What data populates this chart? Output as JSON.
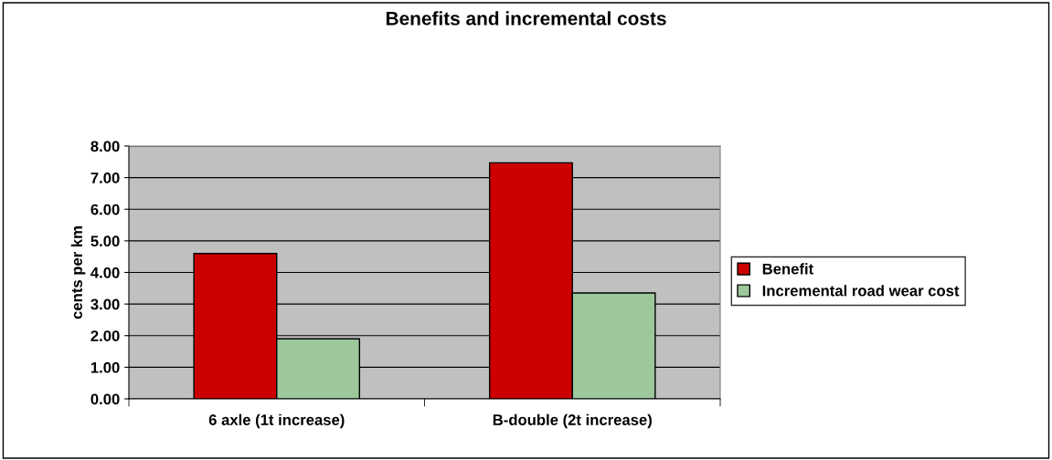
{
  "chart_data": {
    "type": "bar",
    "title": "Benefits and incremental costs",
    "ylabel": "cents per km",
    "categories": [
      "6 axle (1t increase)",
      "B-double (2t increase)"
    ],
    "series": [
      {
        "name": "Benefit",
        "color": "#cc0000",
        "values": [
          4.6,
          7.47
        ]
      },
      {
        "name": "Incremental road wear cost",
        "color": "#9cc89c",
        "values": [
          1.9,
          3.35
        ]
      }
    ],
    "ylim": [
      0,
      8
    ],
    "yticks": [
      {
        "value": 0,
        "label": "0.00"
      },
      {
        "value": 1,
        "label": "1.00"
      },
      {
        "value": 2,
        "label": "2.00"
      },
      {
        "value": 3,
        "label": "3.00"
      },
      {
        "value": 4,
        "label": "4.00"
      },
      {
        "value": 5,
        "label": "5.00"
      },
      {
        "value": 6,
        "label": "6.00"
      },
      {
        "value": 7,
        "label": "7.00"
      },
      {
        "value": 8,
        "label": "8.00"
      }
    ],
    "grid": "y",
    "legend": "right"
  }
}
